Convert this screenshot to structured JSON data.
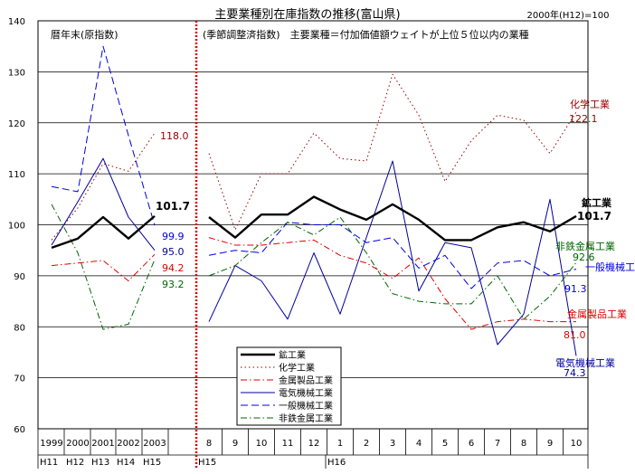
{
  "chart_data": {
    "type": "line",
    "title": "主要業種別在庫指数の推移(富山県)",
    "base_note": "2000年(H12)=100",
    "ylim": [
      60,
      140
    ],
    "yticks": [
      60,
      70,
      80,
      90,
      100,
      110,
      120,
      130,
      140
    ],
    "grid": true,
    "left_panel": {
      "note": "暦年末(原指数)",
      "x_labels": [
        "1999",
        "2000",
        "2001",
        "2002",
        "2003"
      ],
      "era_labels": [
        "H11",
        "H12",
        "H13",
        "H14",
        "H15"
      ]
    },
    "right_panel": {
      "note": "(季節調整済指数)　主要業種＝付加価値額ウェイトが上位５位以内の業種",
      "x_labels": [
        "8",
        "9",
        "10",
        "11",
        "12",
        "1",
        "2",
        "3",
        "4",
        "5",
        "6",
        "7",
        "8",
        "9",
        "10"
      ],
      "era_labels": [
        "H15",
        "H16"
      ]
    },
    "series": [
      {
        "name": "鉱工業",
        "color": "#000000",
        "dash": "",
        "width": 2.4,
        "left": [
          95.5,
          97.3,
          101.5,
          97.3,
          101.7
        ],
        "right": [
          101.5,
          97.5,
          102.0,
          102.0,
          105.5,
          103.0,
          101.0,
          104.0,
          101.0,
          97.0,
          97.0,
          99.5,
          100.5,
          98.7,
          101.7
        ],
        "left_end_label": "101.7",
        "right_end_label": "101.7",
        "right_name_label": "鉱工業"
      },
      {
        "name": "化学工業",
        "color": "#990000",
        "dash": "1.5,3",
        "width": 1,
        "left": [
          97.0,
          103.3,
          112.0,
          110.5,
          118.0
        ],
        "right": [
          114.0,
          99.0,
          110.0,
          110.0,
          118.0,
          113.0,
          112.5,
          129.5,
          121.5,
          108.5,
          116.5,
          121.5,
          120.5,
          114.0,
          122.1
        ],
        "left_end_label": "118.0",
        "right_end_label": "122.1",
        "right_name_label": "化学工業"
      },
      {
        "name": "金属製品工業",
        "color": "#dd0000",
        "dash": "7,3,1.5,3",
        "width": 1,
        "left": [
          92.0,
          92.5,
          93.0,
          89.0,
          94.2
        ],
        "right": [
          97.5,
          96.0,
          96.0,
          96.5,
          97.0,
          94.0,
          92.5,
          89.5,
          93.5,
          85.5,
          79.5,
          81.0,
          81.5,
          81.0,
          81.0
        ],
        "left_end_label": "94.2",
        "right_end_label": "81.0",
        "right_name_label": "金属製品工業"
      },
      {
        "name": "電気機械工業",
        "color": "#000099",
        "dash": "",
        "width": 1,
        "left": [
          96.0,
          104.5,
          113.0,
          101.5,
          95.0
        ],
        "right": [
          81.0,
          92.0,
          89.0,
          81.5,
          94.5,
          82.5,
          97.5,
          112.5,
          87.0,
          96.5,
          95.5,
          76.5,
          82.5,
          105.0,
          74.3
        ],
        "left_end_label": "95.0",
        "right_end_label": "74.3",
        "right_name_label": "電気機械工業"
      },
      {
        "name": "一般機械工業",
        "color": "#0000dd",
        "dash": "8,4",
        "width": 1,
        "left": [
          107.5,
          106.5,
          135.0,
          117.5,
          99.9
        ],
        "right": [
          94.0,
          95.0,
          94.5,
          100.5,
          100.0,
          100.0,
          96.5,
          97.5,
          91.5,
          94.0,
          87.5,
          92.5,
          93.0,
          90.0,
          91.3
        ],
        "left_end_label": "99.9",
        "right_end_label": "91.3",
        "right_name_label": "一般機械工業"
      },
      {
        "name": "非鉄金属工業",
        "color": "#006600",
        "dash": "7,3,1.5,3",
        "width": 1,
        "left": [
          104.0,
          94.5,
          79.5,
          80.5,
          93.2
        ],
        "right": [
          90.0,
          92.0,
          96.5,
          100.5,
          98.0,
          101.5,
          94.5,
          86.5,
          85.0,
          84.5,
          84.5,
          90.0,
          81.5,
          86.0,
          92.6
        ],
        "left_end_label": "93.2",
        "right_end_label": "92.6",
        "right_name_label": "非鉄金属工業"
      }
    ]
  }
}
